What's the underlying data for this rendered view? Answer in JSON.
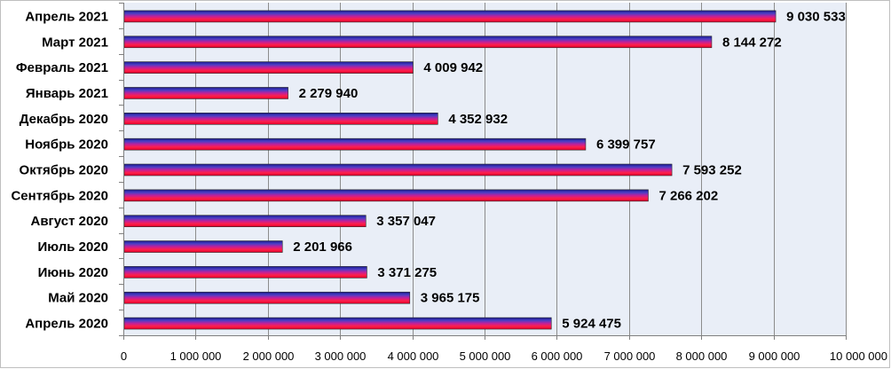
{
  "chart_data": {
    "type": "bar",
    "orientation": "horizontal",
    "title": "",
    "xlabel": "",
    "ylabel": "",
    "categories": [
      "Апрель 2021",
      "Март 2021",
      "Февраль 2021",
      "Январь  2021",
      "Декабрь  2020",
      "Ноябрь  2020",
      "Октябрь  2020",
      "Сентябрь 2020",
      "Август 2020",
      "Июль 2020",
      "Июнь 2020",
      "Май 2020",
      "Апрель 2020"
    ],
    "values": [
      9030533,
      8144272,
      4009942,
      2279940,
      4352932,
      6399757,
      7593252,
      7266202,
      3357047,
      2201966,
      3371275,
      3965175,
      5924475
    ],
    "value_labels": [
      "9 030 533",
      "8 144 272",
      "4 009 942",
      "2 279 940",
      "4 352 932",
      "6 399 757",
      "7 593 252",
      "7 266 202",
      "3 357 047",
      "2 201 966",
      "3 371 275",
      "3 965 175",
      "5 924 475"
    ],
    "xlim": [
      0,
      10000000
    ],
    "xticks": [
      0,
      1000000,
      2000000,
      3000000,
      4000000,
      5000000,
      6000000,
      7000000,
      8000000,
      9000000,
      10000000
    ],
    "xtick_labels": [
      "0",
      "1 000 000",
      "2 000 000",
      "3 000 000",
      "4 000 000",
      "5 000 000",
      "6 000 000",
      "7 000 000",
      "8 000 000",
      "9 000 000",
      "10 000 000"
    ],
    "grid": "vertical",
    "legend": "none",
    "colors": {
      "plot_background": "#e9eef7",
      "grid": "#8c8c8c",
      "bar_gradient": [
        "#1a1a8c",
        "#4b3fc6",
        "#c0209b",
        "#ff1f4a",
        "#e0002a"
      ]
    }
  }
}
